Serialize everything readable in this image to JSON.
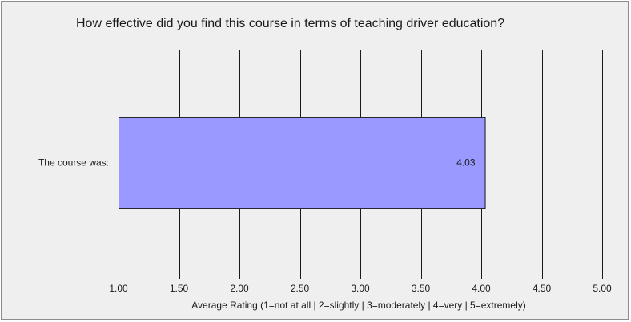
{
  "chart_data": {
    "type": "bar",
    "orientation": "horizontal",
    "title": "How effective did you find this course in terms of teaching driver education?",
    "categories": [
      "The course was:"
    ],
    "values": [
      4.03
    ],
    "data_labels": [
      "4.03"
    ],
    "xlabel": "Average Rating (1=not  at all | 2=slightly  | 3=moderately | 4=very | 5=extremely)",
    "ylabel": "",
    "xlim": [
      1.0,
      5.0
    ],
    "x_ticks": [
      1.0,
      1.5,
      2.0,
      2.5,
      3.0,
      3.5,
      4.0,
      4.5,
      5.0
    ],
    "x_tick_labels": [
      "1.00",
      "1.50",
      "2.00",
      "2.50",
      "3.00",
      "3.50",
      "4.00",
      "4.50",
      "5.00"
    ],
    "grid": "vertical",
    "legend": "none",
    "colors": {
      "bar_fill": "#9999ff",
      "bar_stroke": "#1a1a1a",
      "background": "#efefef",
      "gridline": "#1a1a1a"
    }
  }
}
